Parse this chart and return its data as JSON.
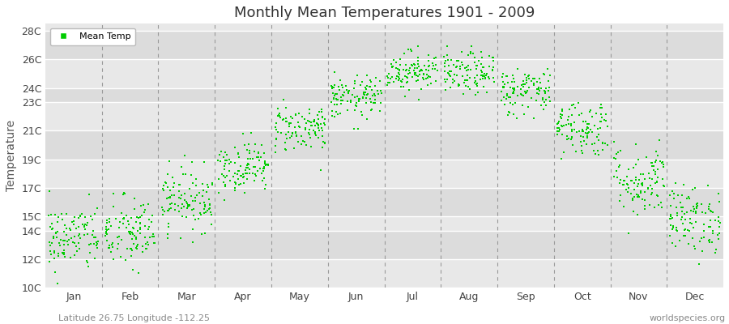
{
  "title": "Monthly Mean Temperatures 1901 - 2009",
  "ylabel": "Temperature",
  "ytick_labels": [
    "10C",
    "12C",
    "14C",
    "15C",
    "17C",
    "19C",
    "21C",
    "23C",
    "24C",
    "26C",
    "28C"
  ],
  "ytick_values": [
    10,
    12,
    14,
    15,
    17,
    19,
    21,
    23,
    24,
    26,
    28
  ],
  "ylim": [
    10,
    28.5
  ],
  "month_labels": [
    "Jan",
    "Feb",
    "Mar",
    "Apr",
    "May",
    "Jun",
    "Jul",
    "Aug",
    "Sep",
    "Oct",
    "Nov",
    "Dec"
  ],
  "dot_color": "#00CC00",
  "background_color": "#FFFFFF",
  "plot_bg_light": "#EBEBEB",
  "plot_bg_dark": "#DCDCDC",
  "grid_color": "#FFFFFF",
  "dashed_line_color": "#999999",
  "legend_label": "Mean Temp",
  "subtitle_left": "Latitude 26.75 Longitude -112.25",
  "subtitle_right": "worldspecies.org",
  "monthly_means": [
    13.5,
    13.8,
    16.2,
    18.5,
    21.2,
    23.3,
    25.2,
    25.0,
    23.8,
    21.2,
    17.5,
    14.8
  ],
  "monthly_std": [
    1.2,
    1.3,
    1.1,
    0.9,
    0.85,
    0.75,
    0.7,
    0.75,
    0.85,
    1.0,
    1.3,
    1.2
  ],
  "n_years": 109,
  "seed": 42,
  "band_pairs": [
    [
      10,
      12,
      "#E8E8E8"
    ],
    [
      12,
      14,
      "#DCDCDC"
    ],
    [
      14,
      15,
      "#E8E8E8"
    ],
    [
      15,
      17,
      "#DCDCDC"
    ],
    [
      17,
      19,
      "#E8E8E8"
    ],
    [
      19,
      21,
      "#DCDCDC"
    ],
    [
      21,
      23,
      "#E8E8E8"
    ],
    [
      23,
      24,
      "#DCDCDC"
    ],
    [
      24,
      26,
      "#E8E8E8"
    ],
    [
      26,
      28,
      "#DCDCDC"
    ],
    [
      28,
      29,
      "#E8E8E8"
    ]
  ]
}
